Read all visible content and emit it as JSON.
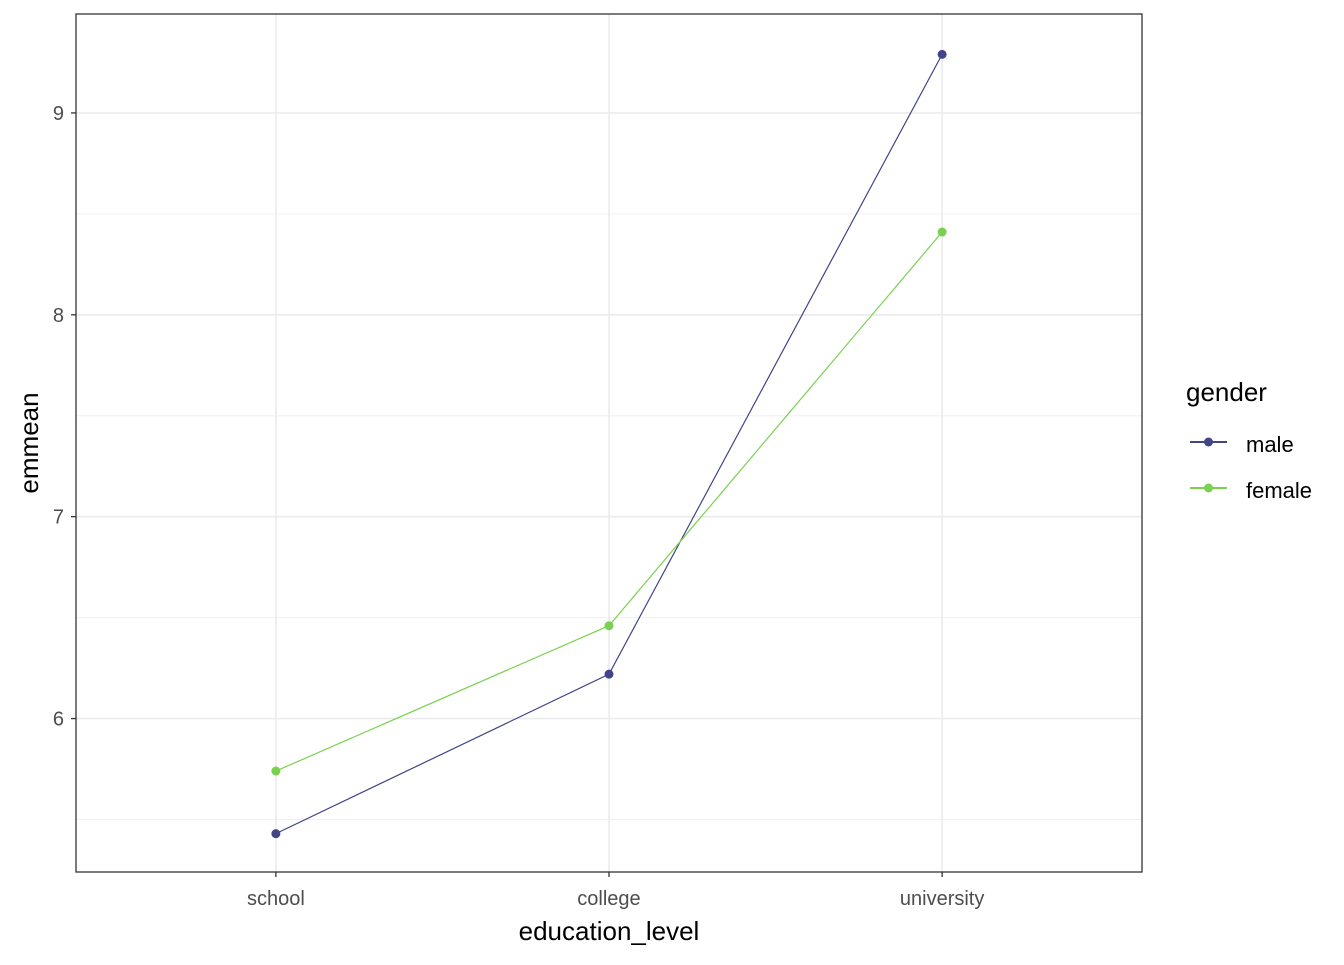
{
  "chart_data": {
    "type": "line",
    "title": "",
    "xlabel": "education_level",
    "ylabel": "emmean",
    "categories": [
      "school",
      "college",
      "university"
    ],
    "yticks": [
      6,
      7,
      8,
      9
    ],
    "ylim": [
      5.24,
      9.49
    ],
    "grid": true,
    "legend": {
      "title": "gender",
      "placement": "right"
    },
    "series": [
      {
        "name": "male",
        "color": "#414487",
        "values": [
          5.43,
          6.22,
          9.29
        ]
      },
      {
        "name": "female",
        "color": "#7AD151",
        "values": [
          5.74,
          6.46,
          8.41
        ]
      }
    ]
  }
}
